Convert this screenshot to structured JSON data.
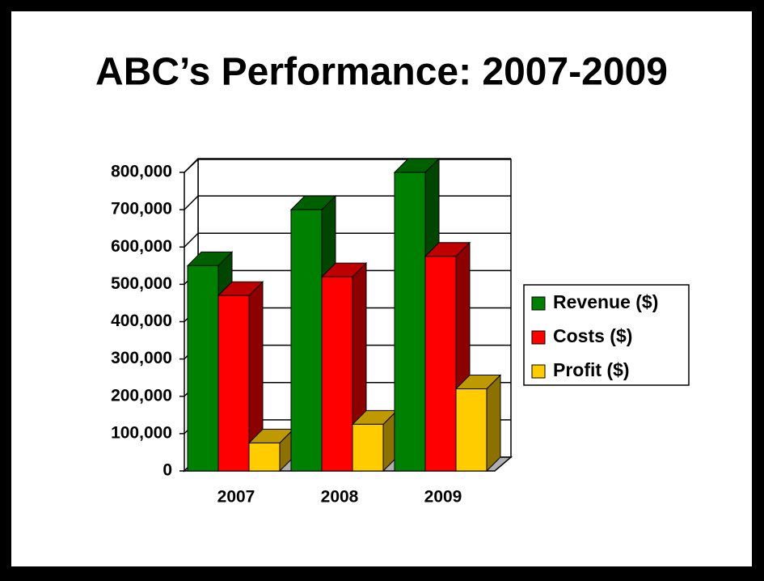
{
  "chart_data": {
    "type": "bar3d",
    "title": "ABC’s Performance: 2007-2009",
    "categories": [
      "2007",
      "2008",
      "2009"
    ],
    "series": [
      {
        "name": "Revenue ($)",
        "color": "#008000",
        "values": [
          550000,
          700000,
          800000
        ]
      },
      {
        "name": "Costs ($)",
        "color": "#ff0000",
        "values": [
          470000,
          520000,
          575000
        ]
      },
      {
        "name": "Profit ($)",
        "color": "#ffcc00",
        "values": [
          75000,
          125000,
          220000
        ]
      }
    ],
    "ylim": [
      0,
      800000
    ],
    "yticks": [
      0,
      {
        "value": 100000,
        "label": "100,000"
      },
      {
        "value": 200000,
        "label": "200,000"
      },
      {
        "value": 300000,
        "label": "300,000"
      },
      {
        "value": 400000,
        "label": "400,000"
      },
      {
        "value": 500000,
        "label": "500,000"
      },
      {
        "value": 600000,
        "label": "600,000"
      },
      {
        "value": 700000,
        "label": "700,000"
      },
      {
        "value": 800000,
        "label": "800,000"
      }
    ],
    "grid": true,
    "legend": "right"
  }
}
